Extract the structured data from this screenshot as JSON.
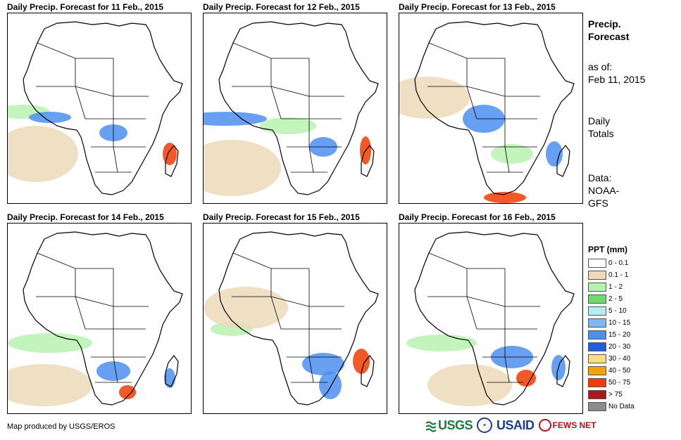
{
  "panels": [
    {
      "title": "Daily Precip. Forecast for 11 Feb., 2015"
    },
    {
      "title": "Daily Precip. Forecast for 12 Feb., 2015"
    },
    {
      "title": "Daily Precip. Forecast for 13 Feb., 2015"
    },
    {
      "title": "Daily Precip. Forecast for 14 Feb., 2015"
    },
    {
      "title": "Daily Precip. Forecast for 15 Feb., 2015"
    },
    {
      "title": "Daily Precip. Forecast for 16 Feb., 2015"
    }
  ],
  "side": {
    "title_line1": "Precip.",
    "title_line2": "Forecast",
    "asof_label": "as of:",
    "asof_date": "Feb 11, 2015",
    "totals_line1": "Daily",
    "totals_line2": "Totals",
    "data_line1": "Data:",
    "data_line2": "NOAA-",
    "data_line3": "GFS"
  },
  "legend": {
    "title": "PPT (mm)",
    "items": [
      {
        "label": "0 - 0.1",
        "color": "#ffffff"
      },
      {
        "label": "0.1 - 1",
        "color": "#ecd9b8"
      },
      {
        "label": "1 - 2",
        "color": "#b7f2b0"
      },
      {
        "label": "2 - 5",
        "color": "#6fdb6a"
      },
      {
        "label": "5 - 10",
        "color": "#b2eef4"
      },
      {
        "label": "10 - 15",
        "color": "#7fb8f0"
      },
      {
        "label": "15 - 20",
        "color": "#4c8ff0"
      },
      {
        "label": "20 - 30",
        "color": "#1f5fe0"
      },
      {
        "label": "30 - 40",
        "color": "#f7e07a"
      },
      {
        "label": "40 - 50",
        "color": "#f5a100"
      },
      {
        "label": "50 - 75",
        "color": "#f03c00"
      },
      {
        "label": "> 75",
        "color": "#a51a1a"
      },
      {
        "label": "No Data",
        "color": "#8c8c8c"
      }
    ]
  },
  "footer": {
    "credit": "Map produced by USGS/EROS",
    "logo_usgs": "USGS",
    "logo_usaid": "USAID",
    "logo_fews": "FEWS NET"
  },
  "colors": {
    "land_border": "#000000",
    "dry": "#ecd9b8",
    "light_rain": "#b7f2b0",
    "moderate_rain": "#6fdb6a",
    "heavy_blue": "#4c8ff0",
    "extreme": "#f03c00"
  }
}
